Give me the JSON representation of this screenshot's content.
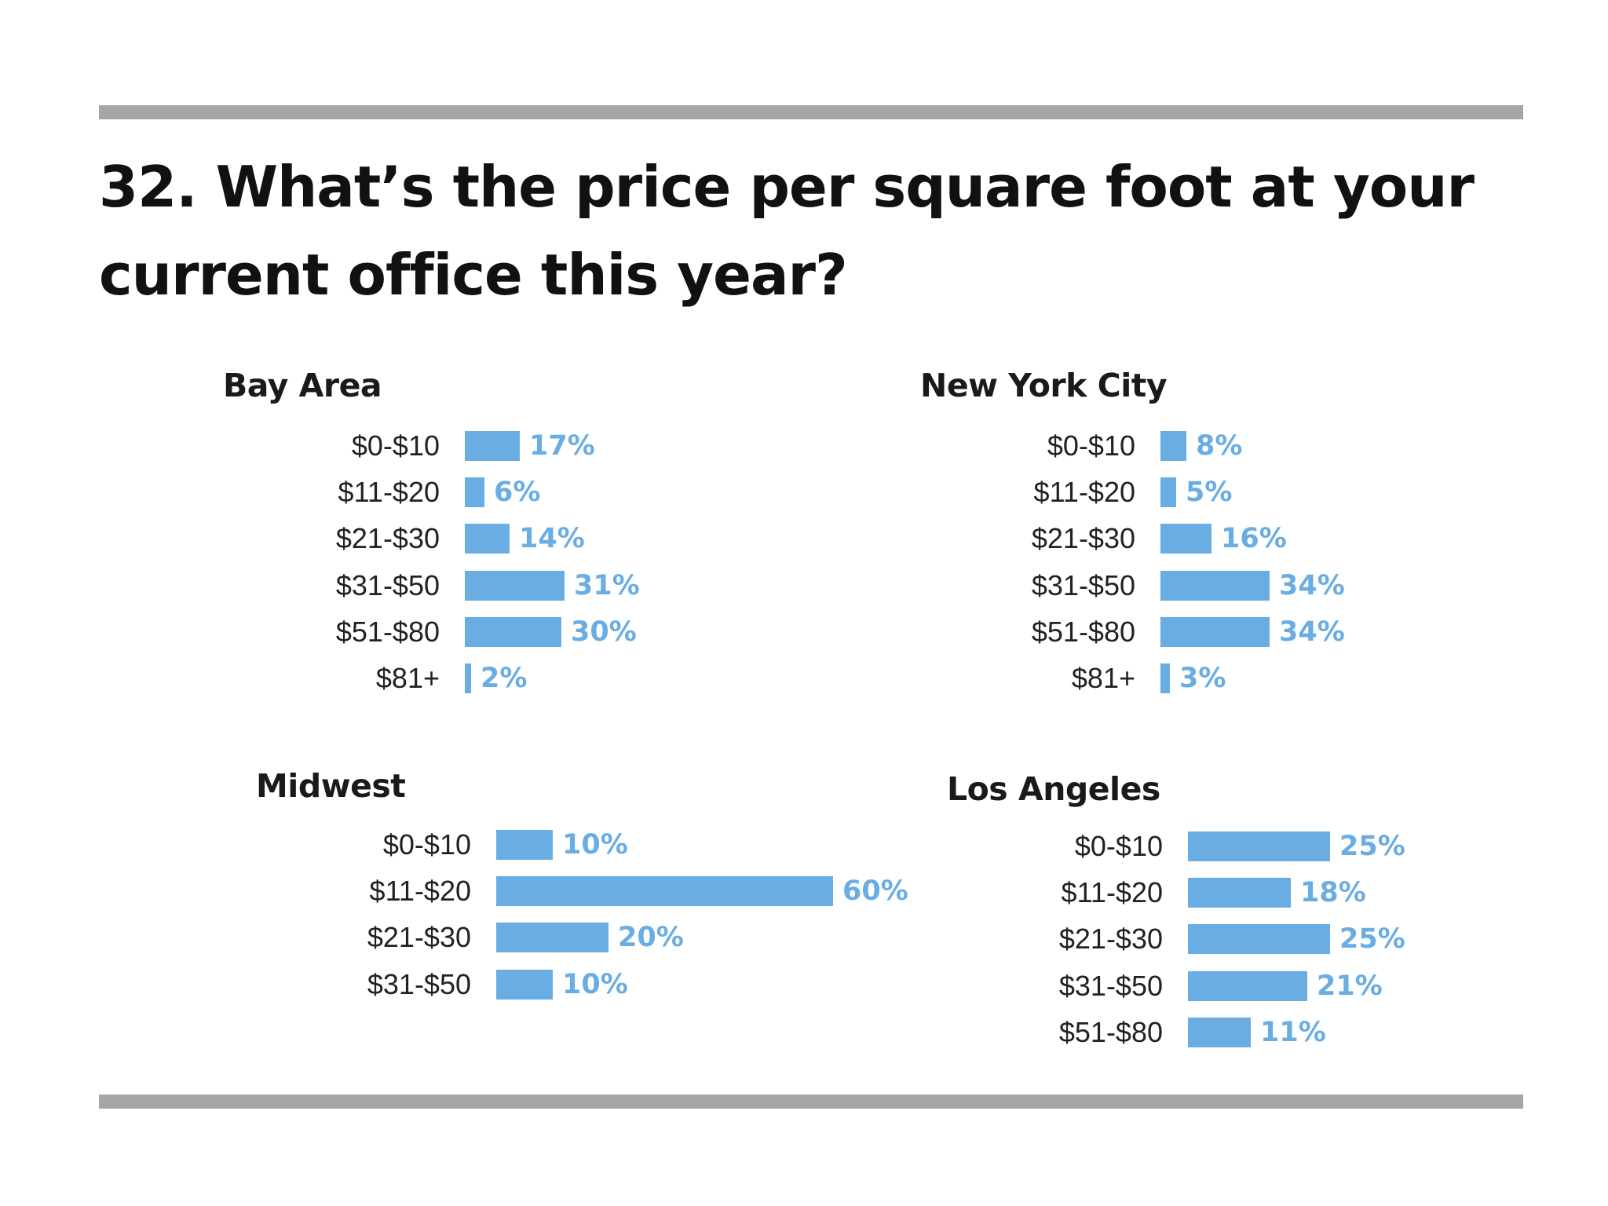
{
  "question": {
    "line1": "32. What’s the price per square foot at your",
    "line2": "current office this year?"
  },
  "colors": {
    "bar": "#6aade3",
    "rule": "#a6a6a6",
    "text": "#111111"
  },
  "chart_data": [
    {
      "type": "bar",
      "orientation": "horizontal",
      "title": "Bay Area",
      "categories": [
        "$0-$10",
        "$11-$20",
        "$21-$30",
        "$31-$50",
        "$51-$80",
        "$81+"
      ],
      "values": [
        17,
        6,
        14,
        31,
        30,
        2
      ],
      "labels": [
        "17%",
        "6%",
        "14%",
        "31%",
        "30%",
        "2%"
      ],
      "unit": "%"
    },
    {
      "type": "bar",
      "orientation": "horizontal",
      "title": "New York City",
      "categories": [
        "$0-$10",
        "$11-$20",
        "$21-$30",
        "$31-$50",
        "$51-$80",
        "$81+"
      ],
      "values": [
        8,
        5,
        16,
        34,
        34,
        3
      ],
      "labels": [
        "8%",
        "5%",
        "16%",
        "34%",
        "34%",
        "3%"
      ],
      "unit": "%"
    },
    {
      "type": "bar",
      "orientation": "horizontal",
      "title": "Midwest",
      "categories": [
        "$0-$10",
        "$11-$20",
        "$21-$30",
        "$31-$50"
      ],
      "values": [
        10,
        60,
        20,
        10
      ],
      "labels": [
        "10%",
        "60%",
        "20%",
        "10%"
      ],
      "unit": "%"
    },
    {
      "type": "bar",
      "orientation": "horizontal",
      "title": "Los Angeles",
      "categories": [
        "$0-$10",
        "$11-$20",
        "$21-$30",
        "$31-$50",
        "$51-$80"
      ],
      "values": [
        25,
        18,
        25,
        21,
        11
      ],
      "labels": [
        "25%",
        "18%",
        "25%",
        "21%",
        "11%"
      ],
      "unit": "%"
    }
  ]
}
